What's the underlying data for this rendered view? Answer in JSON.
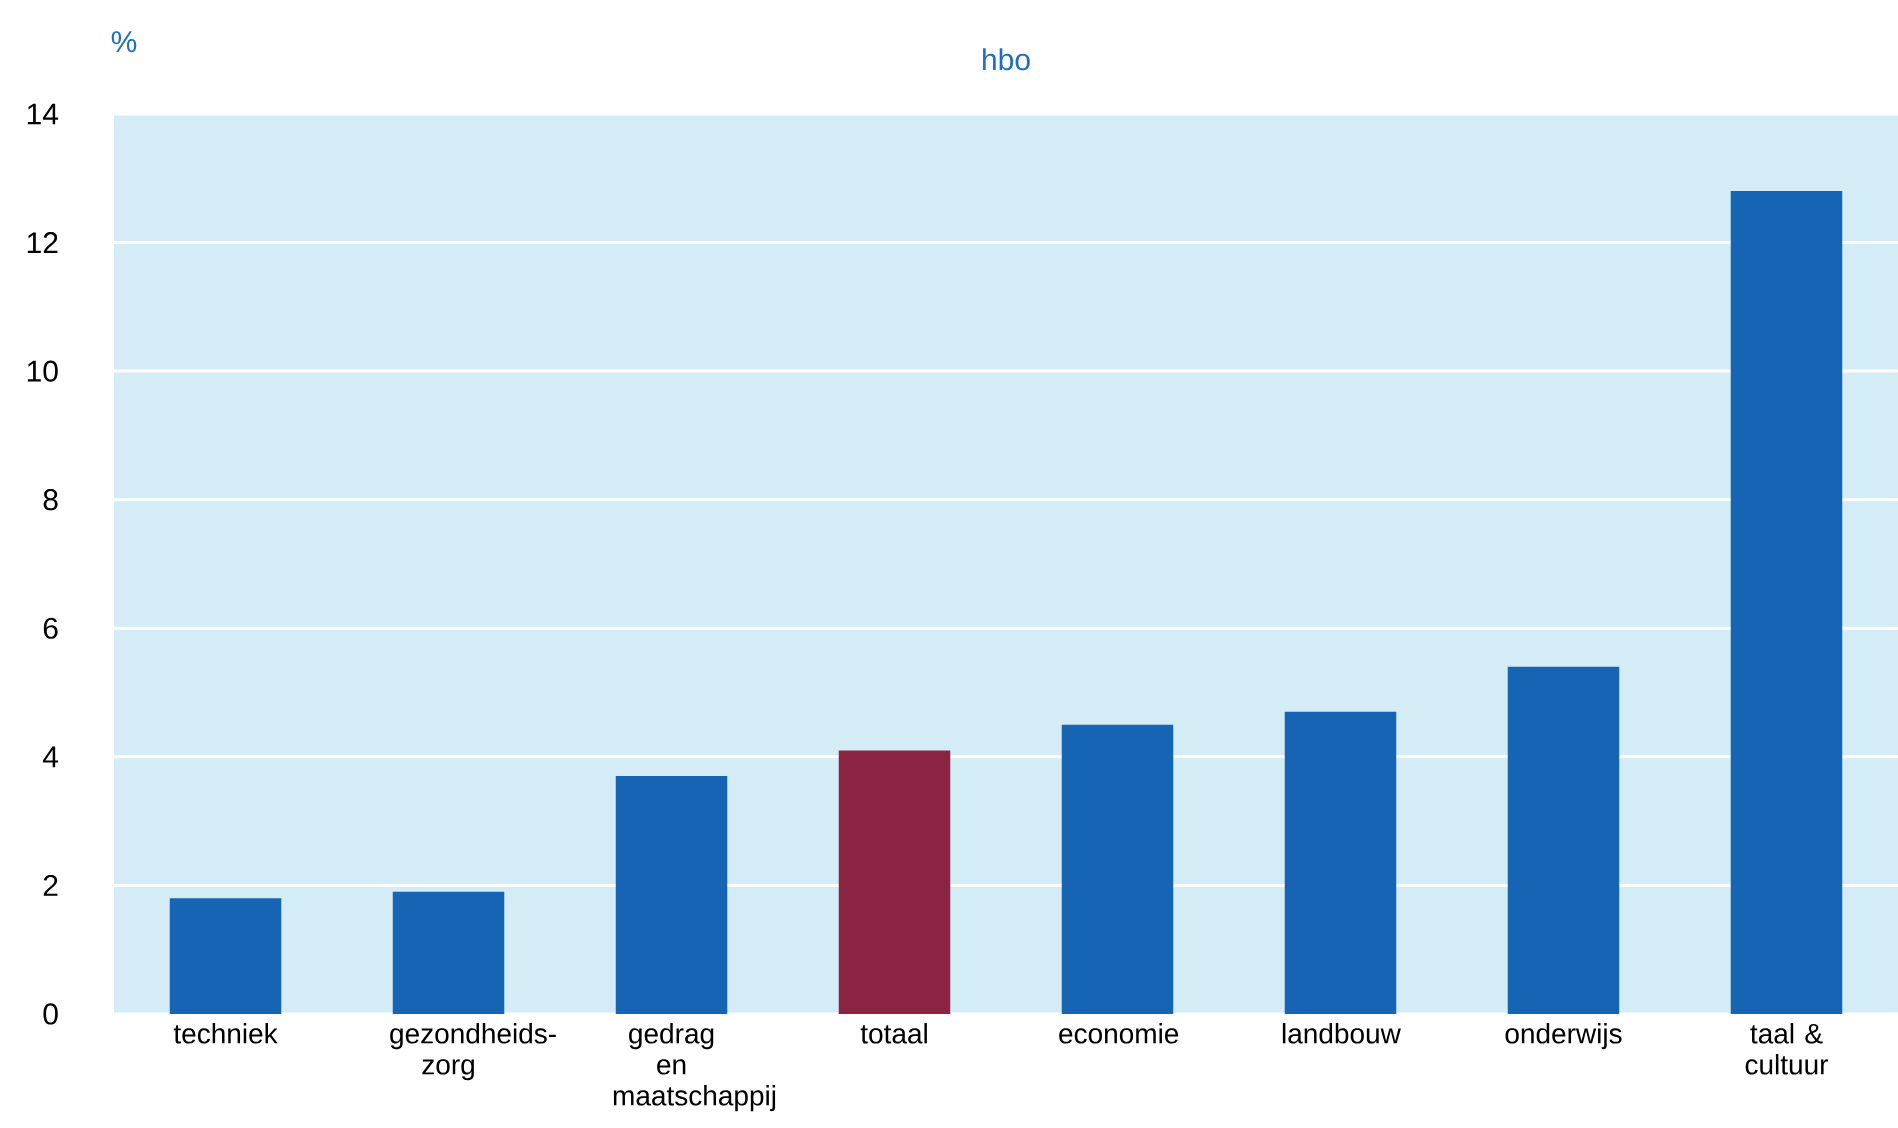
{
  "chart_data": {
    "type": "bar",
    "title": "hbo",
    "ylabel": "%",
    "categories": [
      "techniek",
      "gezondheids-zorg",
      "gedrag en maatschappij",
      "totaal",
      "economie",
      "landbouw",
      "onderwijs",
      "taal & cultuur"
    ],
    "values": [
      1.8,
      1.9,
      3.7,
      4.1,
      4.5,
      4.7,
      5.4,
      12.8
    ],
    "colors": [
      "#1565b4",
      "#1565b4",
      "#1565b4",
      "#8a2442",
      "#1565b4",
      "#1565b4",
      "#1565b4",
      "#1565b4"
    ],
    "ylim": [
      0,
      14
    ],
    "yticks": [
      0,
      2,
      4,
      6,
      8,
      10,
      12,
      14
    ],
    "grid": "y"
  }
}
